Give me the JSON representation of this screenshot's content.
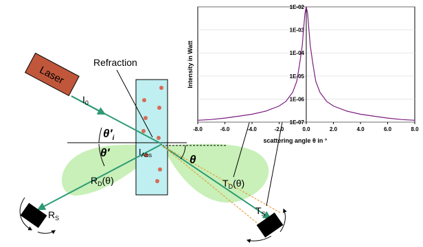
{
  "labels": {
    "laser": "Laser",
    "refraction": "Refraction",
    "i0": "I",
    "i0_sub": "0",
    "iabs": "I",
    "iabs_sub": "Abs",
    "theta_i": "θ′",
    "theta_i_sub": "i",
    "theta_prime": "θ′",
    "theta": "θ",
    "rd": "R",
    "rd_sub": "D",
    "rd_arg": "(θ)",
    "td": "T",
    "td_sub": "D",
    "td_arg": "(θ)",
    "rs": "R",
    "rs_sub": "S",
    "ts": "T",
    "ts_sub": "S"
  },
  "colors": {
    "laser": "#c0573b",
    "cuvette": "#bfeff0",
    "particle": "#d96a55",
    "lobe": "#c8f0b8",
    "beam": "#2e9a73",
    "dashed": "#e6a040",
    "curve": "#7a1a80"
  },
  "chart_data": {
    "type": "line",
    "xlabel": "scattering angle θ in °",
    "ylabel": "Intensity in Watt",
    "y_scale": "log",
    "xlim": [
      -8.0,
      8.0
    ],
    "ylim": [
      1e-07,
      0.01
    ],
    "x_ticks": [
      "-8.0",
      "-6.0",
      "-4.0",
      "-2.0",
      "0.0",
      "2.0",
      "4.0",
      "6.0",
      "8.0"
    ],
    "y_ticks": [
      "1E-07",
      "1E-06",
      "1E-05",
      "1E-04",
      "1E-03",
      "1E-02"
    ],
    "series": [
      {
        "x": [
          -8.0,
          -7.0,
          -6.0,
          -5.0,
          -4.0,
          -3.0,
          -2.0,
          -1.5,
          -1.0,
          -0.7,
          -0.5,
          -0.3,
          -0.2,
          -0.1,
          0.0,
          0.1,
          0.2,
          0.3,
          0.5,
          0.7,
          1.0,
          1.5,
          2.0,
          3.0,
          4.0,
          5.0,
          6.0,
          7.0,
          8.0
        ],
        "y": [
          1.2e-07,
          1.3e-07,
          1.5e-07,
          1.8e-07,
          2.2e-07,
          3e-07,
          5e-07,
          8e-07,
          2e-06,
          6e-06,
          3e-05,
          0.0002,
          0.001,
          0.005,
          0.01,
          0.005,
          0.001,
          0.0002,
          3e-05,
          6e-06,
          2e-06,
          8e-07,
          5e-07,
          3e-07,
          2.2e-07,
          1.8e-07,
          1.5e-07,
          1.3e-07,
          1.2e-07
        ]
      }
    ]
  }
}
